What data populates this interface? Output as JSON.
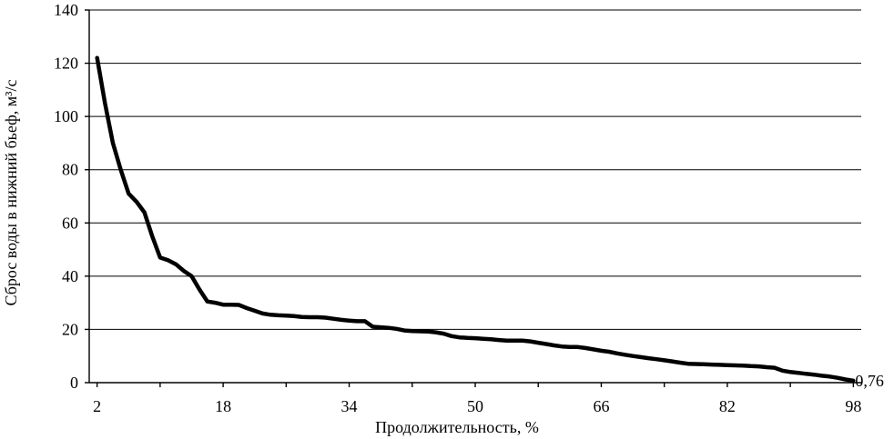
{
  "chart_data": {
    "type": "line",
    "title": "",
    "xlabel": "Продолжительность, %",
    "ylabel": "Сброс воды в нижний бьеф, м³/с",
    "ylim": [
      0,
      140
    ],
    "yticks": [
      0,
      20,
      40,
      60,
      80,
      100,
      120,
      140
    ],
    "xlim": [
      2,
      98
    ],
    "xticks": [
      2,
      18,
      34,
      50,
      66,
      82,
      98
    ],
    "grid": true,
    "legend": "none",
    "annotation": "0,76",
    "series": [
      {
        "color": "#000000",
        "x": [
          2,
          3,
          4,
          5,
          6,
          7,
          8,
          9,
          10,
          11,
          12,
          13,
          14,
          15,
          16,
          17,
          18,
          19,
          20,
          21,
          22,
          23,
          24,
          25,
          26,
          27,
          28,
          29,
          30,
          31,
          32,
          33,
          34,
          35,
          36,
          37,
          38,
          39,
          40,
          41,
          42,
          43,
          44,
          45,
          46,
          47,
          48,
          49,
          50,
          51,
          52,
          53,
          54,
          55,
          56,
          57,
          58,
          59,
          60,
          61,
          62,
          63,
          64,
          65,
          66,
          67,
          68,
          69,
          70,
          71,
          72,
          73,
          74,
          75,
          76,
          77,
          78,
          79,
          80,
          81,
          82,
          83,
          84,
          85,
          86,
          87,
          88,
          89,
          90,
          91,
          92,
          93,
          94,
          95,
          96,
          97,
          98
        ],
        "y": [
          122,
          105,
          90,
          80,
          71,
          68,
          64,
          55,
          47,
          46,
          44.5,
          42,
          40,
          35,
          30.5,
          30,
          29.3,
          29.3,
          29.2,
          28,
          27,
          26,
          25.5,
          25.3,
          25.2,
          25,
          24.7,
          24.6,
          24.6,
          24.4,
          24,
          23.6,
          23.3,
          23.1,
          23.1,
          21,
          20.8,
          20.6,
          20.2,
          19.6,
          19.4,
          19.3,
          19.2,
          18.9,
          18.4,
          17.5,
          17,
          16.8,
          16.7,
          16.5,
          16.3,
          16,
          15.8,
          15.8,
          15.8,
          15.5,
          15,
          14.5,
          14,
          13.6,
          13.4,
          13.4,
          13,
          12.5,
          12,
          11.6,
          11,
          10.5,
          10,
          9.6,
          9.2,
          8.8,
          8.4,
          8,
          7.5,
          7.1,
          7,
          6.9,
          6.8,
          6.7,
          6.6,
          6.5,
          6.4,
          6.2,
          6.1,
          5.8,
          5.6,
          4.5,
          4,
          3.7,
          3.3,
          3,
          2.6,
          2.3,
          1.8,
          1.2,
          0.76
        ]
      }
    ]
  }
}
